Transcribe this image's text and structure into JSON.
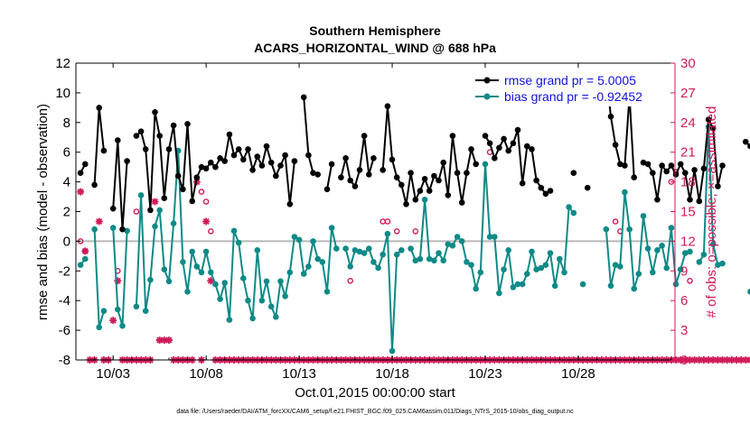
{
  "chart_data": {
    "type": "line",
    "title": "Southern Hemisphere",
    "subtitle": "ACARS_HORIZONTAL_WIND @ 688 hPa",
    "xlabel": "Oct.01,2015 00:00:00 start",
    "ylabel": "rmse and bias (model - observation)",
    "y2label": "# of obs: o=possible; ×=assimilated",
    "xlim": [
      1,
      33.2
    ],
    "ylim": [
      -8,
      12
    ],
    "y2lim": [
      0,
      30
    ],
    "xticks": [
      {
        "x": 3,
        "label": "10/03"
      },
      {
        "x": 8,
        "label": "10/08"
      },
      {
        "x": 13,
        "label": "10/13"
      },
      {
        "x": 18,
        "label": "10/18"
      },
      {
        "x": 23,
        "label": "10/23"
      },
      {
        "x": 28,
        "label": "10/28"
      }
    ],
    "yticks": [
      -8,
      -6,
      -4,
      -2,
      0,
      2,
      4,
      6,
      8,
      10,
      12
    ],
    "y2ticks": [
      0,
      3,
      6,
      9,
      12,
      15,
      18,
      21,
      24,
      27,
      30
    ],
    "legend_position": "top-right",
    "footer": "data file: /Users/raeder/DAI/ATM_forcXX/CAM6_setup/f.e21.FHIST_BGC.f09_025.CAM6assim.011/Diags_NTrS_2015-10/obs_diag_output.nc",
    "series": [
      {
        "name": "rmse",
        "legend": "rmse grand pr = 5.0005",
        "color": "#000000",
        "x_start": 1.25,
        "dx": 0.25,
        "values": [
          4.6,
          5.2,
          null,
          3.8,
          9.0,
          6.1,
          null,
          2.2,
          6.8,
          0.8,
          5.4,
          null,
          7.1,
          7.4,
          6.2,
          2.1,
          8.7,
          7.1,
          2.9,
          6.2,
          7.8,
          4.4,
          3.5,
          7.9,
          2.7,
          4.3,
          5.0,
          4.9,
          5.3,
          5.0,
          5.6,
          5.4,
          7.2,
          5.8,
          6.2,
          5.5,
          6.2,
          4.8,
          5.7,
          5.1,
          6.4,
          5.3,
          4.4,
          5.1,
          5.8,
          2.5,
          5.4,
          null,
          9.7,
          5.8,
          4.6,
          4.5,
          null,
          3.5,
          5.2,
          null,
          4.3,
          5.6,
          4.1,
          3.7,
          4.8,
          7.1,
          4.5,
          5.6,
          null,
          4.8,
          9.1,
          5.5,
          4.3,
          3.8,
          2.5,
          4.6,
          2.8,
          3.4,
          4.2,
          3.4,
          4.4,
          4.1,
          5.3,
          3.1,
          7.1,
          4.6,
          2.6,
          4.6,
          6.2,
          5.2,
          null,
          7.1,
          6.6,
          5.6,
          6.3,
          6.9,
          6.1,
          6.6,
          7.5,
          3.9,
          6.4,
          6.2,
          4.1,
          3.6,
          3.2,
          3.4,
          null,
          null,
          null,
          null,
          4.6,
          null,
          null,
          3.6,
          null,
          null,
          null,
          11.3,
          8.4,
          6.5,
          5.2,
          5.1,
          9.8,
          4.3,
          null,
          5.3,
          5.2,
          4.6,
          2.8,
          5.1,
          4.7,
          5.1,
          4.5,
          5.2,
          4.6,
          2.8,
          4.8,
          2.7,
          4.9,
          8.2,
          7.6,
          3.7,
          5.1,
          null,
          null,
          null,
          null,
          6.7,
          6.4,
          null,
          5.9
        ]
      },
      {
        "name": "bias",
        "legend": "bias grand pr = -0.92452",
        "color": "#0e8a87",
        "x_start": 1.25,
        "dx": 0.25,
        "values": [
          -1.6,
          -1.2,
          null,
          0.8,
          -5.8,
          -4.7,
          null,
          0.9,
          -4.6,
          -5.7,
          0.7,
          null,
          -4.4,
          3.1,
          -4.7,
          -2.6,
          1.0,
          2.1,
          -1.9,
          -2.7,
          1.2,
          6.1,
          -1.4,
          -3.4,
          -0.7,
          -1.7,
          -2.1,
          -0.7,
          -2.1,
          -2.9,
          -3.9,
          -2.8,
          -5.3,
          0.7,
          -0.1,
          -2.5,
          -4.0,
          -5.2,
          -0.6,
          -4.0,
          -2.7,
          -4.4,
          -5.1,
          -2.7,
          -3.7,
          -2.1,
          0.3,
          0.1,
          -2.2,
          -1.7,
          0.0,
          -1.2,
          -1.4,
          -3.4,
          0.9,
          -0.5,
          null,
          -0.5,
          -1.7,
          -0.6,
          -0.7,
          -0.8,
          -0.5,
          -1.4,
          -1.8,
          -0.9,
          0.5,
          -7.4,
          -0.9,
          -0.6,
          null,
          -0.5,
          -1.3,
          -1.2,
          2.8,
          -1.2,
          -1.3,
          -0.8,
          -1.3,
          -0.2,
          -0.3,
          0.3,
          0.0,
          -1.4,
          -1.6,
          -3.2,
          -2.1,
          5.2,
          0.3,
          0.3,
          -3.5,
          -1.9,
          -0.6,
          -3.1,
          -2.9,
          -2.9,
          -2.2,
          -0.7,
          -1.9,
          -1.8,
          -1.6,
          -0.8,
          -3.0,
          -1.2,
          -2.1,
          2.3,
          1.9,
          null,
          -2.9,
          null,
          null,
          null,
          null,
          0.8,
          -3.0,
          -1.6,
          -1.7,
          3.3,
          0.8,
          -3.2,
          -2.2,
          1.7,
          -0.5,
          -2.1,
          -0.6,
          -0.3,
          -1.8,
          0.9,
          -2.9,
          -1.9,
          -0.8,
          -0.7,
          null,
          -1.4,
          -0.9,
          7.7,
          -0.2,
          -1.6,
          -1.5,
          null,
          null,
          null,
          null,
          null,
          -3.4
        ]
      }
    ],
    "obs_possible": {
      "name": "# of obs possible",
      "marker": "o",
      "color": "#d01a5a",
      "x_start": 1.25,
      "dx": 0.25,
      "values": [
        12,
        11,
        null,
        null,
        null,
        null,
        null,
        null,
        9,
        null,
        null,
        null,
        15,
        null,
        null,
        null,
        null,
        null,
        null,
        null,
        null,
        null,
        null,
        null,
        null,
        null,
        17,
        16,
        13,
        null,
        null,
        null,
        null,
        null,
        null,
        null,
        null,
        null,
        null,
        null,
        null,
        null,
        null,
        null,
        null,
        null,
        null,
        null,
        null,
        null,
        null,
        null,
        null,
        null,
        null,
        null,
        null,
        null,
        8,
        null,
        null,
        null,
        null,
        null,
        null,
        14,
        14,
        null,
        13,
        null,
        null,
        null,
        13,
        null,
        null,
        null,
        null,
        null,
        null,
        null,
        null,
        null,
        null,
        null,
        null,
        null,
        null,
        null,
        21,
        null,
        null,
        null,
        null,
        null,
        null,
        null,
        null,
        null,
        null,
        null,
        null,
        null,
        null,
        null,
        null,
        null,
        null,
        null,
        null,
        null,
        null,
        null,
        null,
        null,
        null,
        14,
        13,
        null,
        null,
        null,
        null,
        null,
        null,
        null,
        null,
        null,
        null,
        18,
        19,
        null,
        null,
        8,
        null,
        null,
        null,
        null,
        null,
        null,
        null,
        null,
        null,
        null,
        null,
        null,
        null,
        null,
        null,
        null,
        null,
        null,
        null,
        20,
        null,
        null,
        null
      ]
    },
    "obs_assimilated": {
      "name": "# of obs assimilated",
      "marker": "x",
      "color": "#d01a5a",
      "x_start": 1.25,
      "dx": 0.25,
      "values": [
        17,
        11,
        0,
        0,
        14,
        0,
        0,
        4,
        8,
        0,
        0,
        0,
        0,
        0,
        0,
        0,
        16,
        2,
        2,
        2,
        0,
        0,
        0,
        0,
        0,
        18,
        0,
        14,
        8,
        0,
        0,
        0,
        0,
        0,
        0,
        0,
        0,
        0,
        0,
        0,
        0,
        0,
        0,
        0,
        0,
        0,
        0,
        0,
        0,
        0,
        0,
        0,
        0,
        0,
        0,
        0,
        0,
        0,
        0,
        0,
        0,
        0,
        0,
        0,
        0,
        0,
        0,
        0,
        0,
        0,
        0,
        0,
        0,
        0,
        0,
        0,
        0,
        0,
        0,
        0,
        0,
        0,
        0,
        0,
        0,
        0,
        0,
        0,
        0,
        0,
        0,
        0,
        0,
        0,
        0,
        0,
        0,
        0,
        0,
        0,
        0,
        0,
        0,
        0,
        0,
        0,
        0,
        0,
        0,
        0,
        0,
        0,
        0,
        0,
        0,
        0,
        0,
        0,
        0,
        0,
        0,
        0,
        0,
        0,
        0,
        0,
        0,
        0,
        0,
        0,
        0,
        0,
        0,
        0,
        0,
        0,
        0,
        0,
        0,
        0,
        0,
        0,
        0,
        0,
        0,
        0,
        0,
        0,
        0,
        0,
        0,
        0,
        0,
        0,
        0,
        0,
        0,
        0
      ]
    }
  }
}
